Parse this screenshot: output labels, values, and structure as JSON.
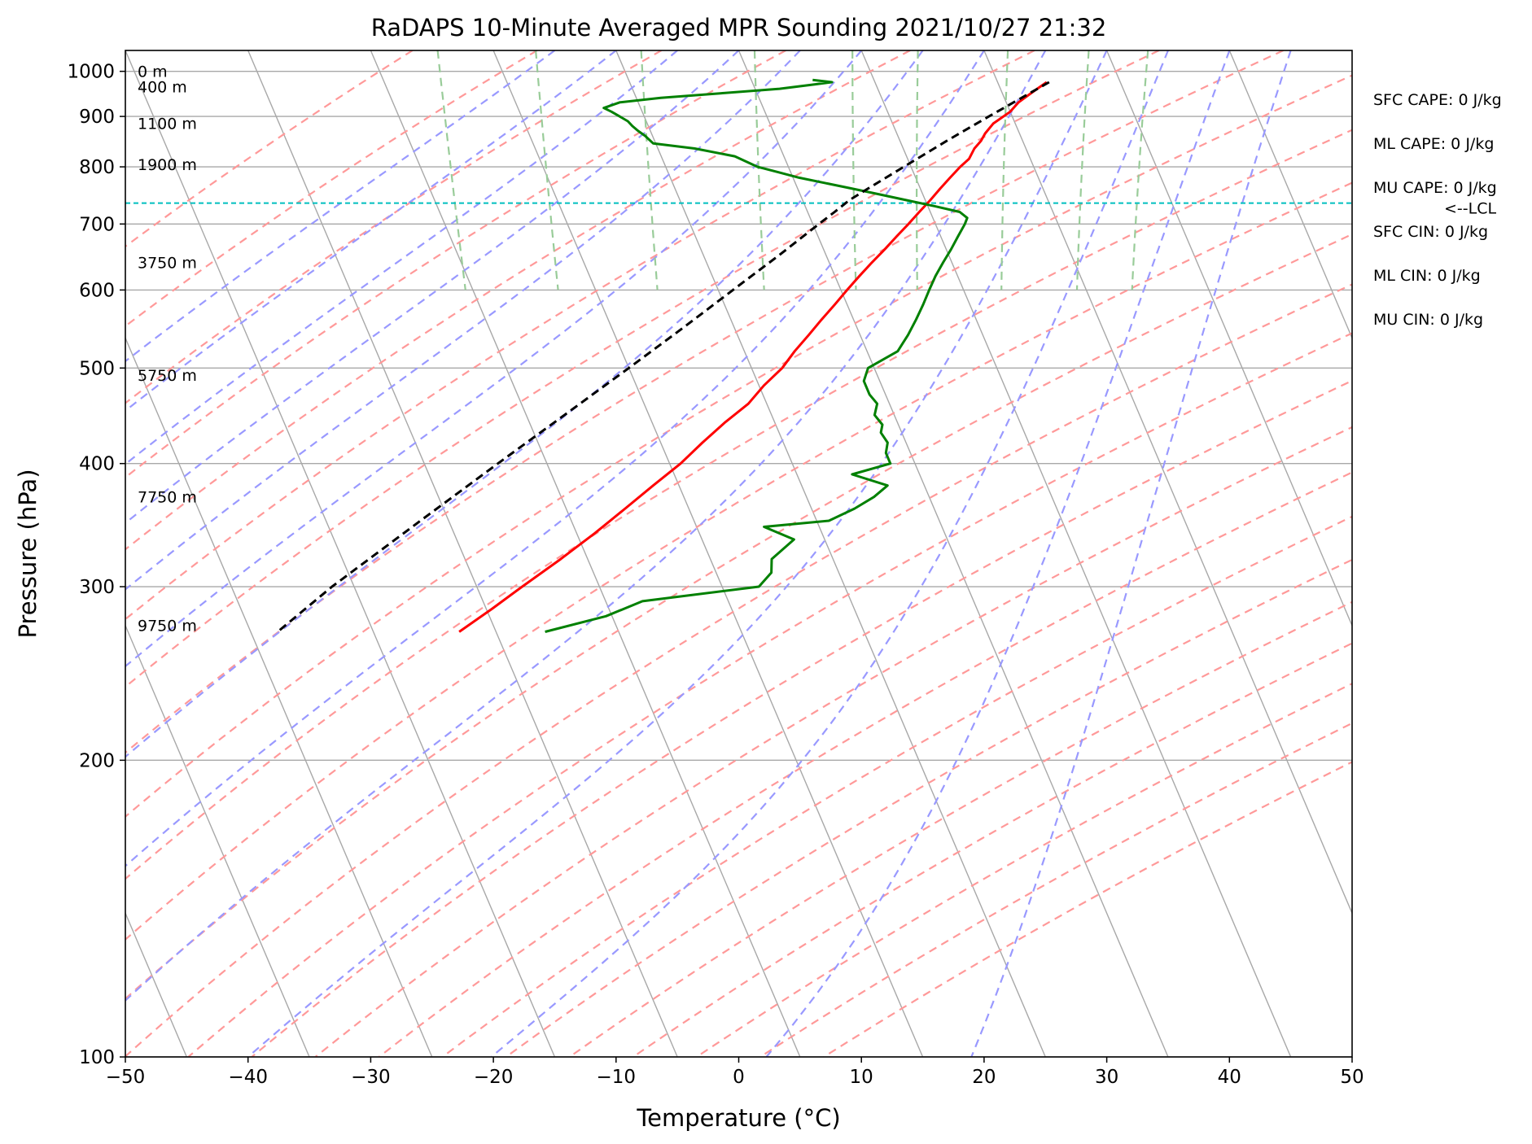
{
  "chart_data": {
    "type": "line",
    "title": "RaDAPS 10-Minute Averaged MPR Sounding 2021/10/27 21:32",
    "xlabel": "Temperature (°C)",
    "ylabel": "Pressure (hPa)",
    "xlim": [
      -50,
      50
    ],
    "ylim": [
      1050,
      100
    ],
    "y_scale": "log",
    "skew": "skew-T",
    "grid": true,
    "x_ticks": [
      -50,
      -40,
      -30,
      -20,
      -10,
      0,
      10,
      20,
      30,
      40,
      50
    ],
    "x_tick_labels": [
      "−50",
      "−40",
      "−30",
      "−20",
      "−10",
      "0",
      "10",
      "20",
      "30",
      "40",
      "50"
    ],
    "y_ticks": [
      100,
      200,
      300,
      400,
      500,
      600,
      700,
      800,
      900,
      1000
    ],
    "y_tick_labels": [
      "100",
      "200",
      "300",
      "400",
      "500",
      "600",
      "700",
      "800",
      "900",
      "1000"
    ],
    "colors": {
      "temperature": "#ff0000",
      "dewpoint": "#008000",
      "parcel": "#000000",
      "lcl": "#00bfbf",
      "dry_adiabat": "#ff9999",
      "moist_adiabat": "#9999ff",
      "mixing_ratio": "#99cc99",
      "isotherm": "#a8a8a8",
      "isobar": "#a8a8a8"
    },
    "series": [
      {
        "key": "temperature",
        "p": [
          975,
          960,
          945,
          930,
          910,
          885,
          865,
          850,
          835,
          815,
          800,
          780,
          760,
          740,
          720,
          700,
          680,
          660,
          640,
          620,
          600,
          580,
          560,
          540,
          520,
          500,
          480,
          460,
          440,
          420,
          400,
          380,
          360,
          340,
          320,
          300,
          285,
          270
        ],
        "t": [
          24.0,
          23.0,
          22.0,
          21.0,
          20.0,
          18.2,
          17.2,
          16.6,
          15.8,
          15.0,
          14.0,
          12.8,
          11.6,
          10.4,
          9.1,
          7.8,
          6.4,
          5.0,
          3.5,
          2.0,
          0.5,
          -1.0,
          -2.6,
          -4.2,
          -5.9,
          -7.5,
          -9.6,
          -11.5,
          -14.1,
          -16.6,
          -19.1,
          -22.1,
          -25.2,
          -28.5,
          -32.2,
          -36.3,
          -39.5,
          -43.0
        ]
      },
      {
        "key": "dewpoint",
        "p": [
          980,
          975,
          970,
          960,
          950,
          940,
          930,
          918,
          910,
          900,
          890,
          880,
          870,
          860,
          845,
          835,
          820,
          800,
          790,
          780,
          770,
          760,
          750,
          740,
          730,
          720,
          710,
          700,
          680,
          660,
          640,
          620,
          600,
          580,
          560,
          540,
          530,
          520,
          500,
          485,
          470,
          460,
          448,
          438,
          430,
          420,
          410,
          400,
          390,
          380,
          370,
          360,
          350,
          345,
          335,
          320,
          310,
          300,
          290,
          280,
          270
        ],
        "t": [
          5.0,
          6.5,
          5.0,
          2.0,
          -3.0,
          -8.0,
          -11.5,
          -13.0,
          -12.5,
          -12.0,
          -11.5,
          -11.3,
          -11.0,
          -10.6,
          -10.2,
          -7.0,
          -4.0,
          -2.5,
          -1.0,
          0.5,
          2.5,
          4.5,
          6.5,
          8.5,
          10.5,
          12.4,
          12.8,
          12.4,
          11.4,
          10.4,
          9.3,
          8.2,
          7.2,
          6.2,
          5.1,
          3.9,
          3.2,
          2.5,
          -0.5,
          -1.3,
          -1.3,
          -1.0,
          -1.6,
          -1.3,
          -1.7,
          -1.5,
          -2.0,
          -2.0,
          -5.5,
          -3.0,
          -4.5,
          -6.5,
          -9.0,
          -14.5,
          -12.5,
          -15.0,
          -15.5,
          -17.0,
          -27.0,
          -30.5,
          -36.0
        ]
      },
      {
        "key": "parcel",
        "p": [
          975,
          900,
          850,
          800,
          760,
          740,
          720,
          700,
          650,
          600,
          550,
          500,
          450,
          400,
          350,
          300,
          270
        ],
        "t": [
          24.2,
          18.1,
          13.8,
          9.4,
          5.7,
          3.8,
          2.2,
          0.5,
          -3.9,
          -8.8,
          -14.1,
          -20.0,
          -26.6,
          -34.0,
          -42.3,
          -51.8,
          -57.8
        ]
      }
    ],
    "lcl_p": 735,
    "lcl_label": "<--LCL",
    "height_labels": [
      {
        "p": 1000,
        "text": "0 m"
      },
      {
        "p": 965,
        "text": "400 m"
      },
      {
        "p": 886,
        "text": "1100 m"
      },
      {
        "p": 805,
        "text": "1900 m"
      },
      {
        "p": 640,
        "text": "3750 m"
      },
      {
        "p": 492,
        "text": "5750 m"
      },
      {
        "p": 370,
        "text": "7750 m"
      },
      {
        "p": 274,
        "text": "9750 m"
      }
    ],
    "indices": [
      {
        "label": "SFC CAPE: 0 J/kg"
      },
      {
        "label": "ML CAPE: 0 J/kg"
      },
      {
        "label": "MU CAPE: 0 J/kg"
      },
      {
        "label": "SFC CIN: 0 J/kg"
      },
      {
        "label": "ML CIN: 0 J/kg"
      },
      {
        "label": "MU CIN: 0 J/kg"
      }
    ]
  }
}
